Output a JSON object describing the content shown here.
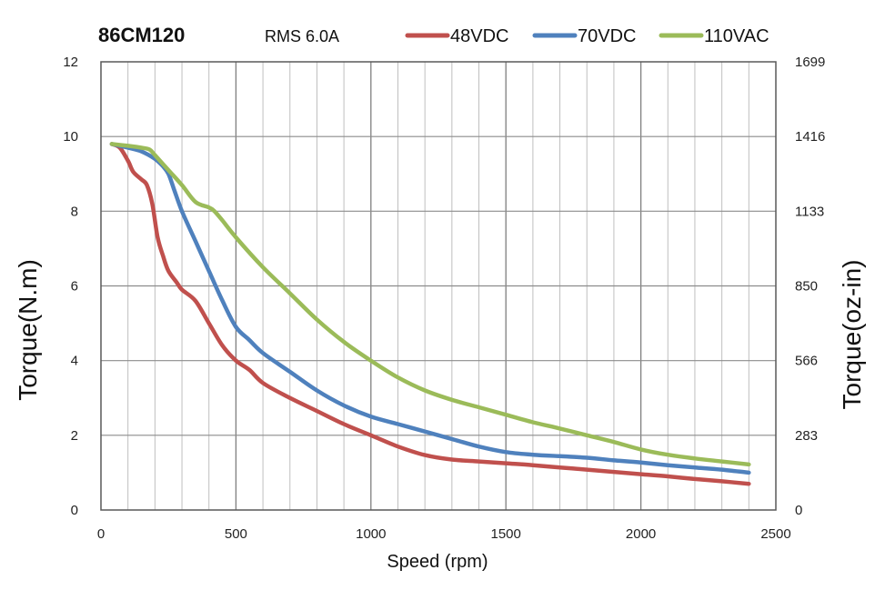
{
  "chart_data": {
    "type": "line",
    "title": "86CM120",
    "subtitle": "RMS 6.0A",
    "xlabel": "Speed (rpm)",
    "ylabel": "Torque(N.m)",
    "y2label": "Torque(oz-in)",
    "xlim": [
      0,
      2500
    ],
    "ylim": [
      0,
      12
    ],
    "x_ticks": [
      "0",
      "500",
      "1000",
      "1500",
      "2000",
      "2500"
    ],
    "y_ticks": [
      "0",
      "2",
      "4",
      "6",
      "8",
      "10",
      "12"
    ],
    "y2_ticks": [
      "0",
      "283",
      "566",
      "850",
      "1133",
      "1416",
      "1699"
    ],
    "grid": true,
    "legend_position": "top",
    "series": [
      {
        "name": "48VDC",
        "color": "#C0504D",
        "x": [
          40,
          70,
          100,
          120,
          150,
          170,
          190,
          210,
          230,
          250,
          280,
          300,
          350,
          400,
          450,
          500,
          550,
          600,
          700,
          800,
          900,
          1000,
          1100,
          1200,
          1300,
          1400,
          1500,
          1600,
          1700,
          1800,
          1900,
          2000,
          2100,
          2200,
          2300,
          2400
        ],
        "values": [
          9.8,
          9.7,
          9.35,
          9.05,
          8.85,
          8.7,
          8.2,
          7.3,
          6.8,
          6.4,
          6.1,
          5.9,
          5.6,
          5.0,
          4.4,
          4.0,
          3.75,
          3.4,
          3.0,
          2.65,
          2.3,
          2.0,
          1.7,
          1.47,
          1.35,
          1.3,
          1.25,
          1.2,
          1.14,
          1.08,
          1.02,
          0.96,
          0.9,
          0.83,
          0.77,
          0.7
        ]
      },
      {
        "name": "70VDC",
        "color": "#4F81BD",
        "x": [
          40,
          100,
          150,
          200,
          230,
          250,
          270,
          300,
          350,
          400,
          450,
          500,
          550,
          600,
          700,
          800,
          900,
          1000,
          1100,
          1200,
          1300,
          1400,
          1500,
          1600,
          1700,
          1800,
          1900,
          2000,
          2100,
          2200,
          2300,
          2400
        ],
        "values": [
          9.8,
          9.7,
          9.6,
          9.4,
          9.2,
          9.0,
          8.6,
          8.0,
          7.2,
          6.4,
          5.6,
          4.9,
          4.55,
          4.2,
          3.7,
          3.2,
          2.8,
          2.5,
          2.3,
          2.1,
          1.9,
          1.7,
          1.55,
          1.48,
          1.44,
          1.4,
          1.33,
          1.27,
          1.2,
          1.14,
          1.08,
          1.0
        ]
      },
      {
        "name": "110VAC",
        "color": "#9BBB59",
        "x": [
          40,
          100,
          150,
          180,
          200,
          250,
          300,
          350,
          400,
          420,
          450,
          500,
          600,
          700,
          800,
          900,
          1000,
          1100,
          1200,
          1300,
          1400,
          1500,
          1600,
          1700,
          1800,
          1900,
          2000,
          2100,
          2200,
          2300,
          2400
        ],
        "values": [
          9.8,
          9.75,
          9.7,
          9.65,
          9.5,
          9.1,
          8.7,
          8.25,
          8.1,
          8.0,
          7.75,
          7.3,
          6.5,
          5.8,
          5.1,
          4.5,
          4.0,
          3.55,
          3.2,
          2.95,
          2.75,
          2.55,
          2.35,
          2.18,
          2.0,
          1.82,
          1.62,
          1.48,
          1.38,
          1.3,
          1.22
        ]
      }
    ]
  }
}
